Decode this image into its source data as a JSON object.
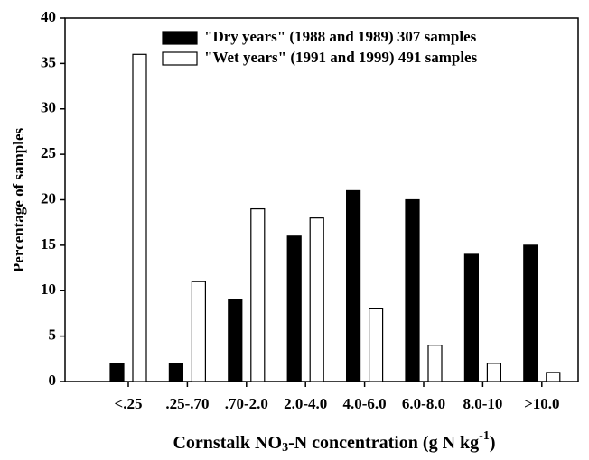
{
  "chart_data": {
    "type": "bar",
    "y_label": "Percentage of samples",
    "x_label": [
      "Cornstalk NO",
      "3",
      "-N concentration (g N kg",
      "-1",
      ")"
    ],
    "categories": [
      "<.25",
      ".25-.70",
      ".70-2.0",
      "2.0-4.0",
      "4.0-6.0",
      "6.0-8.0",
      "8.0-10",
      ">10.0"
    ],
    "series": [
      {
        "name": "\"Dry years\" (1988 and 1989) 307 samples",
        "color": "#000000",
        "values": [
          2,
          2,
          9,
          16,
          21,
          20,
          14,
          15
        ]
      },
      {
        "name": "\"Wet years\" (1991 and 1999) 491 samples",
        "color": "#ffffff",
        "values": [
          36,
          11,
          19,
          18,
          8,
          4,
          2,
          1
        ]
      }
    ],
    "ylim": [
      0,
      40
    ],
    "yticks": [
      0,
      5,
      10,
      15,
      20,
      25,
      30,
      35,
      40
    ],
    "legend": "upper right"
  }
}
